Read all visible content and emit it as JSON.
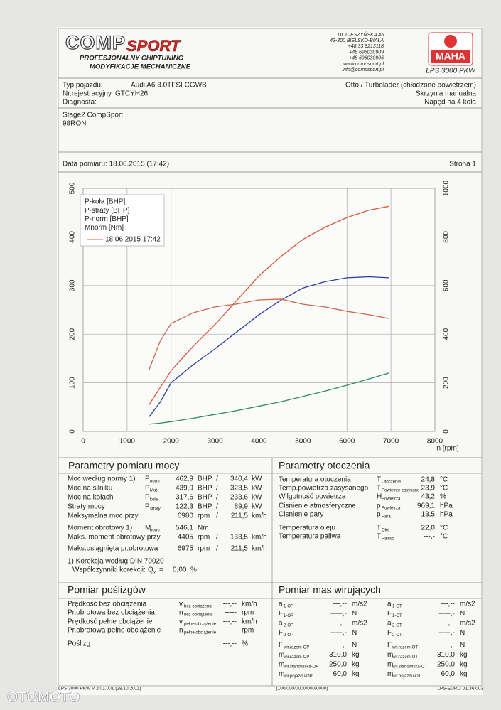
{
  "header": {
    "logo_comp": "COMP",
    "logo_sport": "SPORT",
    "tagline1": "PROFESJONALNY CHIPTUNING",
    "tagline2": "MODYFIKACJE MECHANICZNE",
    "address": [
      "UL.CIESZYŃSKA 45",
      "43-300 BIELSKO-BIAŁA",
      "+48 33 8213118",
      "+48 696030909",
      "+48 696030906",
      "www.compsport.pl",
      "info@compsport.pl"
    ],
    "maha": "MAHA",
    "model": "LPS 3000 PKW"
  },
  "vehicle": {
    "type_label": "Typ pojazdu:",
    "type_value": "Audi A6 3.0TFSI CGWB",
    "reg_label": "Nr.rejestracyjny",
    "reg_value": "GTCYH26",
    "diag_label": "Diagnosta:",
    "engine": "Otto / Turbolader (chłodzone powietrzem)",
    "gearbox": "Skrzynia manualna",
    "drive": "Napęd na 4 koła"
  },
  "notes": [
    "Stage2 CompSport",
    "98RON"
  ],
  "date": "Data pomiaru: 18.06.2015 (17:42)",
  "page": "Strona 1",
  "chart_data": {
    "type": "line",
    "x_label": "n [rpm]",
    "x": [
      1500,
      1750,
      2000,
      2500,
      3000,
      3500,
      4000,
      4500,
      5000,
      5500,
      6000,
      6500,
      6950
    ],
    "xlim": [
      0,
      8000
    ],
    "xticks": [
      0,
      1000,
      2000,
      3000,
      4000,
      5000,
      6000,
      7000,
      8000
    ],
    "ylim": [
      0,
      500
    ],
    "yticks": [
      0,
      100,
      200,
      300,
      400,
      500
    ],
    "y2lim": [
      0,
      1000
    ],
    "y2ticks": [
      0,
      200,
      400,
      600,
      800,
      1000
    ],
    "grid": true,
    "legend_date": "18.06.2015 17:42",
    "series": [
      {
        "name": "P-koła [BHP]",
        "color": "#2b3f9c",
        "values": [
          30,
          60,
          100,
          137,
          170,
          205,
          240,
          270,
          295,
          308,
          316,
          318,
          316
        ]
      },
      {
        "name": "P-straty [BHP]",
        "color": "#2f8a6a",
        "values": [
          15,
          17,
          20,
          27,
          35,
          43,
          52,
          61,
          72,
          83,
          95,
          108,
          120
        ]
      },
      {
        "name": "P-norm [BHP]",
        "color": "#d8583a",
        "values": [
          55,
          90,
          125,
          175,
          220,
          270,
          320,
          360,
          395,
          420,
          440,
          455,
          463
        ]
      },
      {
        "name": "Mnorm [Nm]",
        "color": "#c9684a",
        "axis": "y2",
        "values": [
          254,
          371,
          444,
          488,
          512,
          524,
          541,
          544,
          523,
          512,
          494,
          480,
          465
        ]
      }
    ]
  },
  "power": {
    "title": "Parametry pomiaru mocy",
    "rows": [
      {
        "label": "Moc według normy 1)",
        "sym": "P",
        "sub": "norm",
        "v1": "462,9",
        "u1": "BHP",
        "v2": "340,4",
        "u2": "kW",
        "color": "#d23a2e"
      },
      {
        "label": "Moc na silniku",
        "sym": "P",
        "sub": "Mot.",
        "v1": "439,9",
        "u1": "BHP",
        "v2": "323,5",
        "u2": "kW",
        "color": "#d23a2e"
      },
      {
        "label": "Moc na kołach",
        "sym": "P",
        "sub": "koła",
        "v1": "317,6",
        "u1": "BHP",
        "v2": "233,6",
        "u2": "kW",
        "color": "#2b3f9c"
      },
      {
        "label": "Straty mocy",
        "sym": "P",
        "sub": "straty",
        "v1": "122,3",
        "u1": "BHP",
        "v2": "89,9",
        "u2": "kW",
        "color": "#2f8a6a"
      },
      {
        "label": "Maksymalna moc przy",
        "v1": "6980",
        "u1": "rpm",
        "v2": "211,5",
        "u2": "km/h",
        "color": "#222"
      },
      {
        "label": "Moment obrotowy 1)",
        "sym": "M",
        "sub": "norm",
        "v1": "546,1",
        "u1": "Nm",
        "color": "#d23a2e"
      },
      {
        "label": "Maks. moment obrotowy przy",
        "v1": "4405",
        "u1": "rpm",
        "v2": "133,5",
        "u2": "km/h",
        "color": "#222"
      },
      {
        "label": "Maks.osiągnięta pr.obrotowa",
        "v1": "6975",
        "u1": "rpm",
        "v2": "211,5",
        "u2": "km/h",
        "color": "#222"
      }
    ],
    "note": "1) Korekcja według DIN 70020",
    "corr_label": "Współczynniki korekcji:",
    "corr_sym": "Q",
    "corr_sub": "v",
    "corr_value": "0,00",
    "corr_unit": "%"
  },
  "ambient": {
    "title": "Parametry otoczenia",
    "rows": [
      {
        "label": "Temperatura otoczenia",
        "sym": "T",
        "sub": "Otoczenie",
        "value": "24,8",
        "unit": "°C"
      },
      {
        "label": "Temp.powietrza zasysanego",
        "sym": "T",
        "sub": "Powietrze zasysane",
        "value": "23,9",
        "unit": "°C"
      },
      {
        "label": "Wilgotność powietrza",
        "sym": "H",
        "sub": "Powietrza",
        "value": "43,2",
        "unit": "%"
      },
      {
        "label": "Cisnienie atmosferyczne",
        "sym": "p",
        "sub": "Powietrza",
        "value": "969,1",
        "unit": "hPa"
      },
      {
        "label": "Cisnienie pary",
        "sym": "p",
        "sub": "Para",
        "value": "13,5",
        "unit": "hPa"
      },
      {
        "label": "Temperatura oleju",
        "sym": "T",
        "sub": "Olej",
        "value": "22,0",
        "unit": "°C"
      },
      {
        "label": "Temperatura paliwa",
        "sym": "T",
        "sub": "Paliwo",
        "value": "---,-",
        "unit": "°C"
      }
    ]
  },
  "slip": {
    "title": "Pomiar poślizgów",
    "rows": [
      {
        "label": "Prędkość bez obciążenia",
        "sym": "v",
        "sub": "bez obciążenia",
        "value": "---,--",
        "unit": "km/h"
      },
      {
        "label": "Pr.obrotowa bez obciążenia",
        "sym": "n",
        "sub": "bez obciążenia",
        "value": "-----",
        "unit": "rpm"
      },
      {
        "label": "Prędkość pełne obciążenie",
        "sym": "v",
        "sub": "pełne obciążenie",
        "value": "---,--",
        "unit": "km/h"
      },
      {
        "label": "Pr.obrotowa pełne obciążenie",
        "sym": "n",
        "sub": "pełne obciążenie",
        "value": "-----",
        "unit": "rpm"
      },
      {
        "label": "Poślizg",
        "value": "---,--",
        "unit": "%"
      }
    ]
  },
  "masses": {
    "title": "Pomiar mas wirujących",
    "rows": [
      [
        {
          "sym": "a",
          "sub": "1-OP",
          "value": "---,--",
          "unit": "m/s2"
        },
        {
          "sym": "a",
          "sub": "1-OT",
          "value": "---,--",
          "unit": "m/s2"
        }
      ],
      [
        {
          "sym": "F",
          "sub": "1-OP",
          "value": "-----,-",
          "unit": "N"
        },
        {
          "sym": "F",
          "sub": "1-OT",
          "value": "-----,-",
          "unit": "N"
        }
      ],
      [
        {
          "sym": "a",
          "sub": "2-OP",
          "value": "---,--",
          "unit": "m/s2"
        },
        {
          "sym": "a",
          "sub": "2-OT",
          "value": "---,--",
          "unit": "m/s2"
        }
      ],
      [
        {
          "sym": "F",
          "sub": "2-OP",
          "value": "-----,-",
          "unit": "N"
        },
        {
          "sym": "F",
          "sub": "2-OT",
          "value": "-----,-",
          "unit": "N"
        }
      ],
      [
        {
          "sym": "F",
          "sub": "wir.razem-OP",
          "value": "-----,-",
          "unit": "N"
        },
        {
          "sym": "F",
          "sub": "wir.razem-OT",
          "value": "-----,-",
          "unit": "N"
        }
      ],
      [
        {
          "sym": "m",
          "sub": "wir.razem-OP",
          "value": "310,0",
          "unit": "kg"
        },
        {
          "sym": "m",
          "sub": "wir.razem-OT",
          "value": "310,0",
          "unit": "kg"
        }
      ],
      [
        {
          "sym": "m",
          "sub": "wir.stanowiska-OP",
          "value": "250,0",
          "unit": "kg"
        },
        {
          "sym": "m",
          "sub": "wir.stanowiska-OT",
          "value": "250,0",
          "unit": "kg"
        }
      ],
      [
        {
          "sym": "m",
          "sub": "wir.pojazdu-OP",
          "value": "60,0",
          "unit": "kg"
        },
        {
          "sym": "m",
          "sub": "wir.pojazdu-OT",
          "value": "60,0",
          "unit": "kg"
        }
      ]
    ]
  },
  "footer": {
    "left": "LPS 3000 PKW V 2.01.001 (28.10.2011)",
    "center": "(100/000/0000/000/0000)",
    "right": "LPS-EURO V1.36.003"
  },
  "watermark": "OTOMOTO"
}
